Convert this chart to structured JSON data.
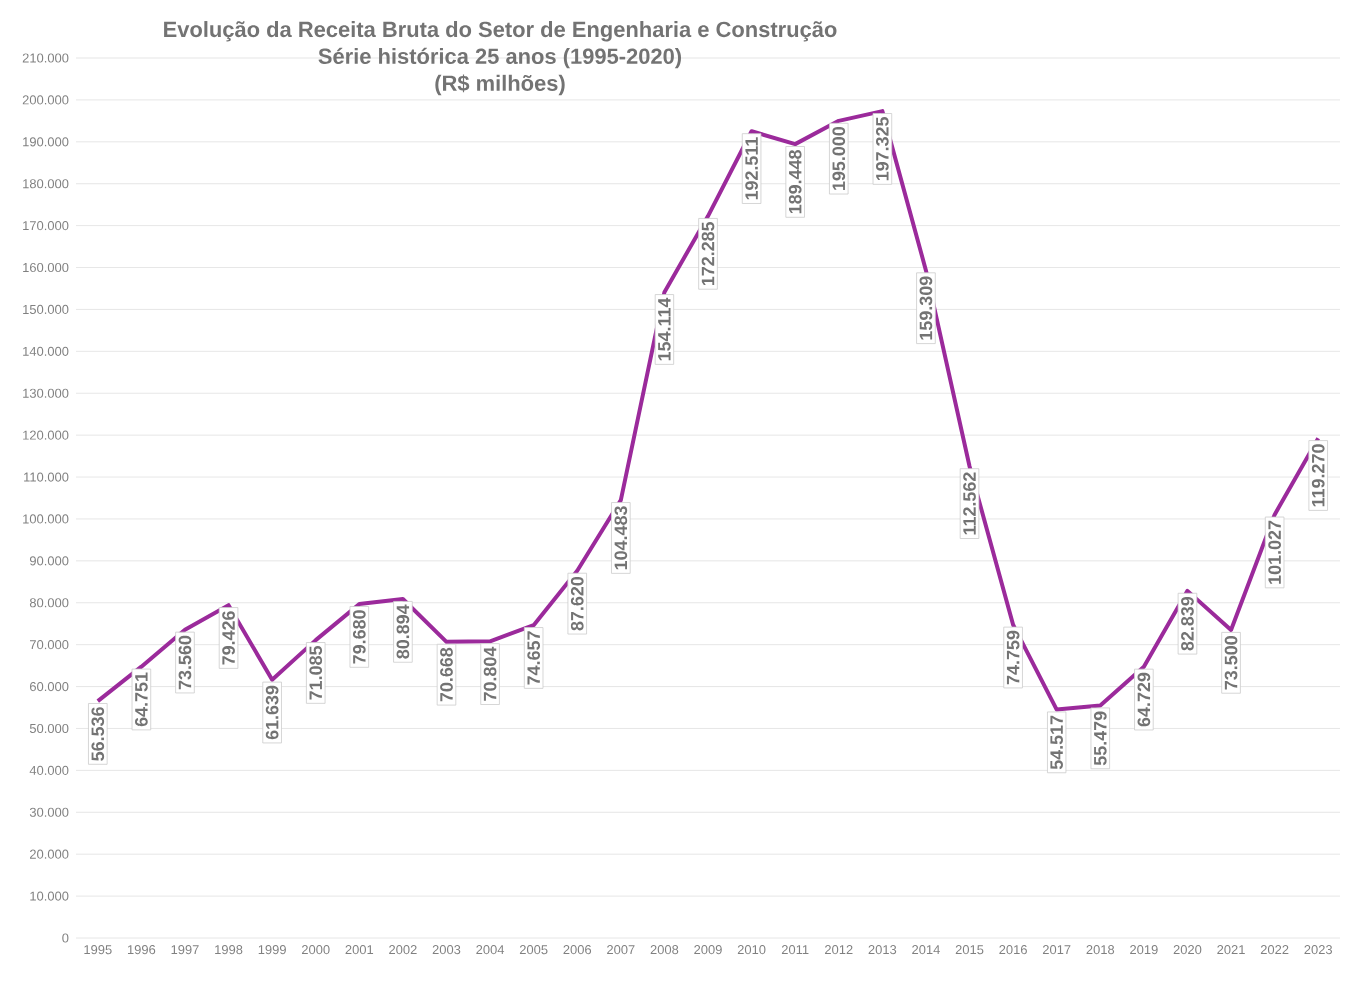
{
  "chart_data": {
    "type": "line",
    "title": "Evolução da Receita Bruta do Setor de Engenharia e Construção",
    "subtitle": "Série histórica 25 anos (1995-2020)",
    "annotations": [
      "(R$ milhões)"
    ],
    "categories": [
      "1995",
      "1996",
      "1997",
      "1998",
      "1999",
      "2000",
      "2001",
      "2002",
      "2003",
      "2004",
      "2005",
      "2006",
      "2007",
      "2008",
      "2009",
      "2010",
      "2011",
      "2012",
      "2013",
      "2014",
      "2015",
      "2016",
      "2017",
      "2018",
      "2019",
      "2020",
      "2021",
      "2022",
      "2023"
    ],
    "series": [
      {
        "color": "#9b2a9b",
        "values": [
          56536,
          64751,
          73560,
          79426,
          61639,
          71085,
          79680,
          80894,
          70668,
          70804,
          74657,
          87620,
          104483,
          154114,
          172285,
          192511,
          189448,
          195000,
          197325,
          159309,
          112562,
          74759,
          54517,
          55479,
          64729,
          82839,
          73500,
          101027,
          119270
        ],
        "value_labels": [
          "56.536",
          "64.751",
          "73.560",
          "79.426",
          "61.639",
          "71.085",
          "79.680",
          "80.894",
          "70.668",
          "70.804",
          "74.657",
          "87.620",
          "104.483",
          "154.114",
          "172.285",
          "192.511",
          "189.448",
          "195.000",
          "197.325",
          "159.309",
          "112.562",
          "74.759",
          "54.517",
          "55.479",
          "64.729",
          "82.839",
          "73.500",
          "101.027",
          "119.270"
        ]
      }
    ],
    "ylim": [
      0,
      210000
    ],
    "yticks": [
      {
        "value": 0,
        "label": "0"
      },
      {
        "value": 10000,
        "label": "10.000"
      },
      {
        "value": 20000,
        "label": "20.000"
      },
      {
        "value": 30000,
        "label": "30.000"
      },
      {
        "value": 40000,
        "label": "40.000"
      },
      {
        "value": 50000,
        "label": "50.000"
      },
      {
        "value": 60000,
        "label": "60.000"
      },
      {
        "value": 70000,
        "label": "70.000"
      },
      {
        "value": 80000,
        "label": "80.000"
      },
      {
        "value": 90000,
        "label": "90.000"
      },
      {
        "value": 100000,
        "label": "100.000"
      },
      {
        "value": 110000,
        "label": "110.000"
      },
      {
        "value": 120000,
        "label": "120.000"
      },
      {
        "value": 130000,
        "label": "130.000"
      },
      {
        "value": 140000,
        "label": "140.000"
      },
      {
        "value": 150000,
        "label": "150.000"
      },
      {
        "value": 160000,
        "label": "160.000"
      },
      {
        "value": 170000,
        "label": "170.000"
      },
      {
        "value": 180000,
        "label": "180.000"
      },
      {
        "value": 190000,
        "label": "190.000"
      },
      {
        "value": 200000,
        "label": "200.000"
      },
      {
        "value": 210000,
        "label": "210.000"
      }
    ],
    "grid": "y",
    "line_style": "solid",
    "marker": "none"
  }
}
